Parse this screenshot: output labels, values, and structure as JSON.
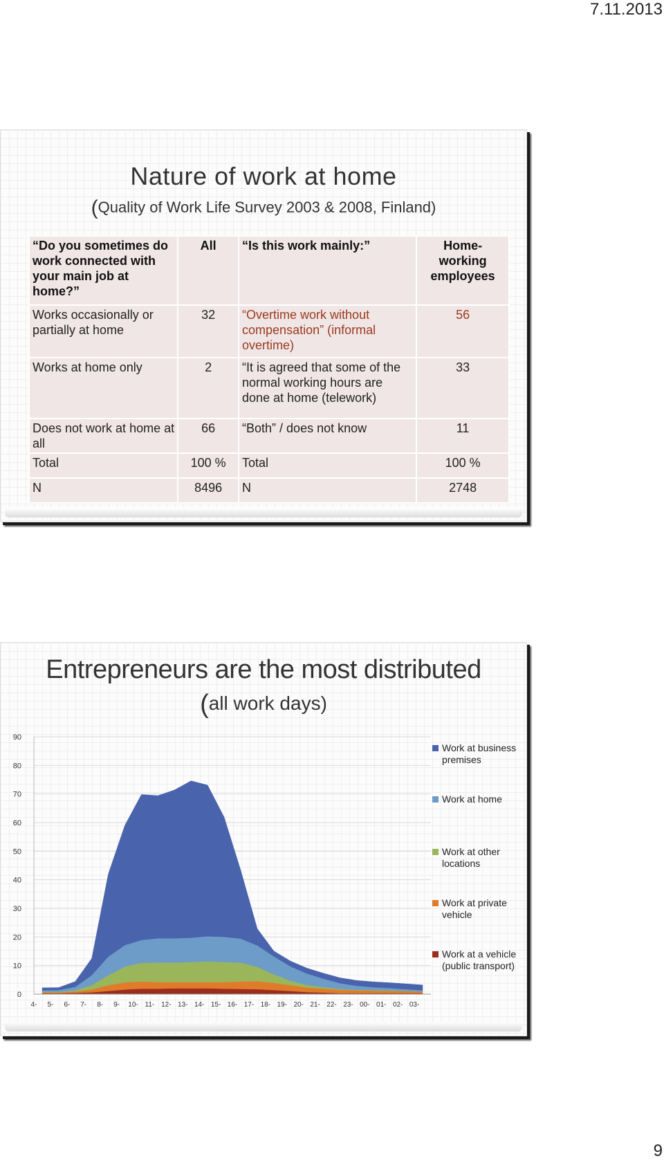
{
  "header": {
    "date": "7.11.2013"
  },
  "footer": {
    "page_number": "9"
  },
  "slide1": {
    "title": "Nature of work at home",
    "subtitle": "Quality of Work Life Survey 2003 & 2008, Finland",
    "table": {
      "headers": {
        "question": "“Do you sometimes do work connected with your main job at home?”",
        "all": "All",
        "mainly": "“Is this work mainly:”",
        "home": "Home-working employees"
      },
      "rows": [
        {
          "label": "Works occasionally or partially at home",
          "all": "32",
          "mainly": "“Overtime work without compensation” (informal overtime)",
          "home": "56"
        },
        {
          "label": "Works at home only",
          "all": "2",
          "mainly": "“It is agreed that some of the normal working hours are done at home (telework)",
          "home": "33"
        },
        {
          "label": "Does not work at home at all",
          "all": "66",
          "mainly": "“Both” / does not know",
          "home": "11"
        },
        {
          "label": "Total",
          "all": "100 %",
          "mainly": "Total",
          "home": "100 %"
        },
        {
          "label": "N",
          "all": "8496",
          "mainly": "N",
          "home": "2748"
        }
      ]
    }
  },
  "slide2": {
    "title": "Entrepreneurs are the most distributed",
    "subtitle": "all work days"
  },
  "chart_data": {
    "type": "area",
    "stacked": true,
    "ylim": [
      0,
      90
    ],
    "yticks": [
      "90",
      "80",
      "70",
      "60",
      "50",
      "40",
      "30",
      "20",
      "10",
      "0"
    ],
    "categories": [
      "4-",
      "5-",
      "6-",
      "7-",
      "8-",
      "9-",
      "10-",
      "11-",
      "12-",
      "13-",
      "14-",
      "15-",
      "16-",
      "17-",
      "18-",
      "19-",
      "20-",
      "21-",
      "22-",
      "23-",
      "00-",
      "01-",
      "02-",
      "03-"
    ],
    "legend_position": "right",
    "series": [
      {
        "name": "Work at a vehicle (public transport)",
        "color": "#9b2d1f",
        "values": [
          0.2,
          0.2,
          0.3,
          0.5,
          1,
          1.5,
          1.8,
          1.8,
          1.9,
          1.9,
          1.9,
          1.8,
          1.7,
          1.6,
          1.3,
          1,
          0.6,
          0.4,
          0.2,
          0.2,
          0.2,
          0.2,
          0.2,
          0.2
        ]
      },
      {
        "name": "Work at private vehicle",
        "color": "#e07b2a",
        "values": [
          0.3,
          0.3,
          0.5,
          1,
          2,
          2.5,
          2.5,
          2.3,
          2.2,
          2.2,
          2.2,
          2.3,
          2.6,
          2.8,
          2.5,
          2,
          1.6,
          1.4,
          1.2,
          1,
          0.9,
          0.8,
          0.7,
          0.5
        ]
      },
      {
        "name": "Work at other locations",
        "color": "#9bb65a",
        "values": [
          0.2,
          0.2,
          0.4,
          1.5,
          3.5,
          5.5,
          6.5,
          6.8,
          6.8,
          7,
          7.2,
          7,
          6.6,
          5,
          3,
          1.6,
          0.9,
          0.5,
          0.3,
          0.2,
          0.2,
          0.2,
          0.1,
          0.1
        ]
      },
      {
        "name": "Work at home",
        "color": "#6d9cc8",
        "values": [
          0.5,
          0.6,
          1.2,
          3.5,
          6.5,
          7.5,
          8,
          8.5,
          8.5,
          8.5,
          8.8,
          8.8,
          8.4,
          7.5,
          6.3,
          5,
          4,
          3,
          2,
          1.4,
          1,
          0.8,
          0.6,
          0.4
        ]
      },
      {
        "name": "Work at business premises",
        "color": "#4a63ad",
        "values": [
          1,
          1,
          2,
          6,
          29,
          42,
          51,
          50,
          52,
          55,
          53,
          42,
          24,
          6,
          2,
          2,
          2,
          2,
          2,
          2,
          2,
          2,
          2,
          2
        ]
      }
    ]
  }
}
